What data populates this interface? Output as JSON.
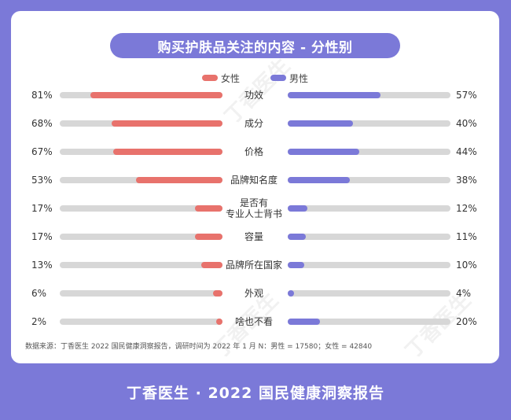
{
  "title": "购买护肤品关注的内容 - 分性别",
  "legend": {
    "female": {
      "label": "女性",
      "color": "#e8726c"
    },
    "male": {
      "label": "男性",
      "color": "#7b79d8"
    }
  },
  "chart_data": {
    "type": "bar",
    "orientation": "horizontal-diverging",
    "title": "购买护肤品关注的内容 - 分性别",
    "categories": [
      [
        "功效"
      ],
      [
        "成分"
      ],
      [
        "价格"
      ],
      [
        "品牌知名度"
      ],
      [
        "是否有",
        "专业人士背书"
      ],
      [
        "容量"
      ],
      [
        "品牌所在国家"
      ],
      [
        "外观"
      ],
      [
        "啥也不看"
      ]
    ],
    "series": [
      {
        "name": "女性",
        "color": "#e8726c",
        "values": [
          81,
          68,
          67,
          53,
          17,
          17,
          13,
          6,
          2
        ],
        "labels": [
          "81%",
          "68%",
          "67%",
          "53%",
          "17%",
          "17%",
          "13%",
          "6%",
          "2%"
        ]
      },
      {
        "name": "男性",
        "color": "#7b79d8",
        "values": [
          57,
          40,
          44,
          38,
          12,
          11,
          10,
          4,
          20
        ],
        "labels": [
          "57%",
          "40%",
          "44%",
          "38%",
          "12%",
          "11%",
          "10%",
          "4%",
          "20%"
        ]
      }
    ],
    "xlim": [
      0,
      100
    ],
    "track_color": "#d7d7d7"
  },
  "source": "数据来源：丁香医生 2022 国民健康洞察报告，调研时间为 2022 年 1 月 N：男性 = 17580；女性 = 42840",
  "footer": "丁香医生  ·  2022 国民健康洞察报告",
  "watermark": "丁香医生"
}
